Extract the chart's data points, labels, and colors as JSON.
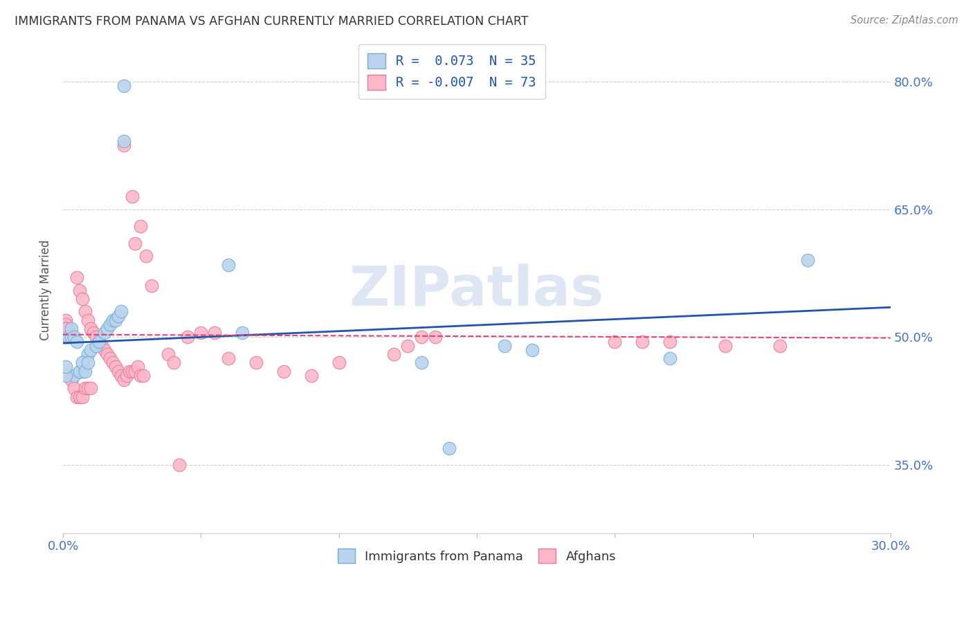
{
  "title": "IMMIGRANTS FROM PANAMA VS AFGHAN CURRENTLY MARRIED CORRELATION CHART",
  "source": "Source: ZipAtlas.com",
  "ylabel": "Currently Married",
  "xmin": 0.0,
  "xmax": 0.3,
  "ymin": 0.27,
  "ymax": 0.84,
  "ytick_positions": [
    0.35,
    0.5,
    0.65,
    0.8
  ],
  "ytick_labels": [
    "35.0%",
    "50.0%",
    "65.0%",
    "80.0%"
  ],
  "xtick_positions": [
    0.0,
    0.05,
    0.1,
    0.15,
    0.2,
    0.25,
    0.3
  ],
  "watermark": "ZIPatlas",
  "blue_scatter_x": [
    0.022,
    0.022,
    0.004,
    0.006,
    0.007,
    0.009,
    0.01,
    0.012,
    0.013,
    0.015,
    0.016,
    0.017,
    0.018,
    0.019,
    0.02,
    0.021,
    0.002,
    0.003,
    0.003,
    0.004,
    0.005,
    0.006,
    0.007,
    0.008,
    0.009,
    0.06,
    0.065,
    0.13,
    0.14,
    0.22,
    0.27,
    0.16,
    0.17,
    0.001,
    0.001
  ],
  "blue_scatter_y": [
    0.795,
    0.73,
    0.455,
    0.46,
    0.46,
    0.48,
    0.485,
    0.49,
    0.495,
    0.505,
    0.51,
    0.515,
    0.52,
    0.52,
    0.525,
    0.53,
    0.5,
    0.5,
    0.51,
    0.5,
    0.495,
    0.46,
    0.47,
    0.46,
    0.47,
    0.585,
    0.505,
    0.47,
    0.37,
    0.475,
    0.59,
    0.49,
    0.485,
    0.455,
    0.465
  ],
  "pink_scatter_x": [
    0.022,
    0.025,
    0.026,
    0.028,
    0.03,
    0.032,
    0.005,
    0.006,
    0.007,
    0.008,
    0.009,
    0.01,
    0.011,
    0.012,
    0.013,
    0.014,
    0.015,
    0.016,
    0.017,
    0.018,
    0.019,
    0.02,
    0.021,
    0.022,
    0.023,
    0.024,
    0.025,
    0.026,
    0.027,
    0.028,
    0.029,
    0.003,
    0.004,
    0.005,
    0.006,
    0.007,
    0.008,
    0.009,
    0.01,
    0.002,
    0.003,
    0.002,
    0.001,
    0.001,
    0.001,
    0.001,
    0.001,
    0.001,
    0.001,
    0.001,
    0.001,
    0.001,
    0.001,
    0.038,
    0.04,
    0.042,
    0.045,
    0.05,
    0.055,
    0.06,
    0.07,
    0.08,
    0.09,
    0.1,
    0.12,
    0.125,
    0.13,
    0.135,
    0.2,
    0.21,
    0.22,
    0.24,
    0.26
  ],
  "pink_scatter_y": [
    0.725,
    0.665,
    0.61,
    0.63,
    0.595,
    0.56,
    0.57,
    0.555,
    0.545,
    0.53,
    0.52,
    0.51,
    0.505,
    0.5,
    0.495,
    0.49,
    0.485,
    0.48,
    0.475,
    0.47,
    0.465,
    0.46,
    0.455,
    0.45,
    0.455,
    0.46,
    0.46,
    0.46,
    0.465,
    0.455,
    0.455,
    0.45,
    0.44,
    0.43,
    0.43,
    0.43,
    0.44,
    0.44,
    0.44,
    0.5,
    0.5,
    0.51,
    0.5,
    0.5,
    0.51,
    0.515,
    0.52,
    0.515,
    0.505,
    0.505,
    0.5,
    0.51,
    0.51,
    0.48,
    0.47,
    0.35,
    0.5,
    0.505,
    0.505,
    0.475,
    0.47,
    0.46,
    0.455,
    0.47,
    0.48,
    0.49,
    0.5,
    0.5,
    0.495,
    0.495,
    0.495,
    0.49,
    0.49
  ],
  "blue_line": {
    "x0": 0.0,
    "x1": 0.3,
    "y0": 0.493,
    "y1": 0.535
  },
  "pink_line": {
    "x0": 0.0,
    "x1": 0.3,
    "y0": 0.503,
    "y1": 0.499
  },
  "blue_scatter_color": "#b8d4ee",
  "blue_scatter_edge": "#7aabd4",
  "pink_scatter_color": "#fcb8c8",
  "pink_scatter_edge": "#e8799a",
  "blue_line_color": "#2255aa",
  "pink_line_color": "#dd4477",
  "grid_color": "#cccccc",
  "axis_label_color": "#4472c4",
  "ylabel_color": "#555555",
  "title_color": "#333333",
  "source_color": "#888888",
  "watermark_color": "#ccd8ee"
}
